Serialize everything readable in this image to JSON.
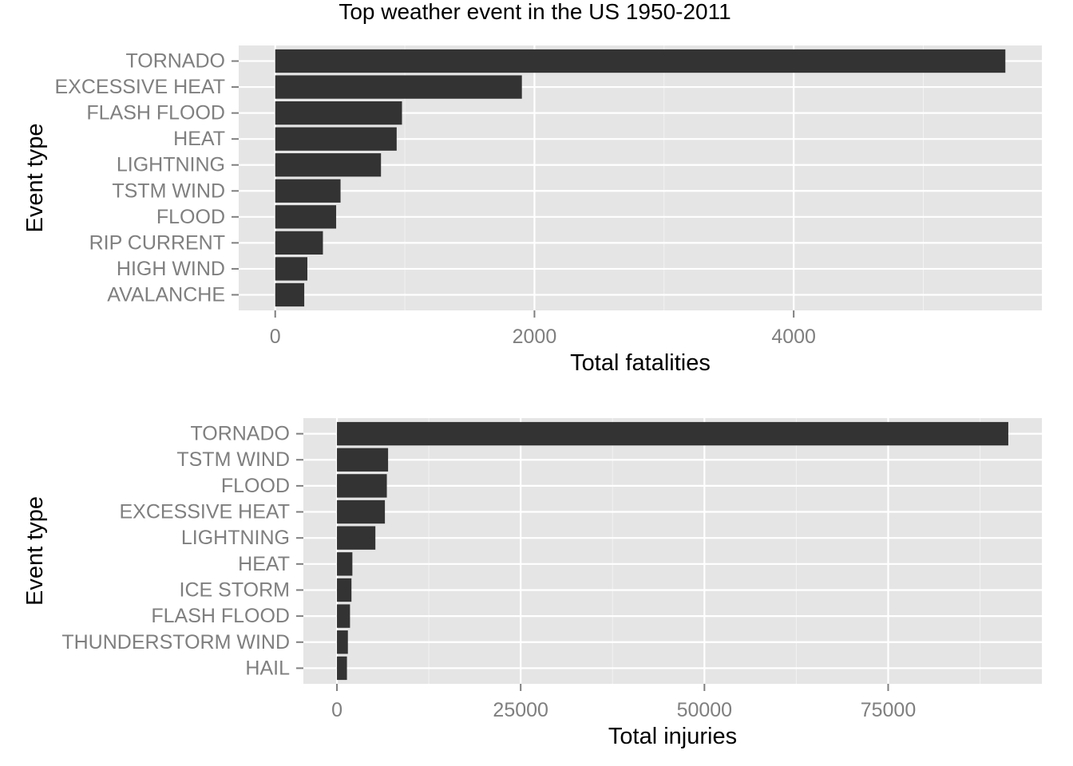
{
  "title": "Top weather event in the US 1950-2011",
  "chart_data": [
    {
      "type": "bar",
      "orientation": "horizontal",
      "categories": [
        "TORNADO",
        "EXCESSIVE HEAT",
        "FLASH FLOOD",
        "HEAT",
        "LIGHTNING",
        "TSTM WIND",
        "FLOOD",
        "RIP CURRENT",
        "HIGH WIND",
        "AVALANCHE"
      ],
      "values": [
        5633,
        1903,
        978,
        937,
        816,
        504,
        470,
        368,
        248,
        224
      ],
      "xlabel": "Total fatalities",
      "ylabel": "Event type",
      "xlim": [
        -281.65,
        5914.65
      ],
      "xticks": [
        0,
        2000,
        4000
      ],
      "xtick_labels": [
        "0",
        "2000",
        "4000"
      ],
      "grid": true,
      "bar_color": "#333333",
      "panel_color": "#e5e5e5"
    },
    {
      "type": "bar",
      "orientation": "horizontal",
      "categories": [
        "TORNADO",
        "TSTM WIND",
        "FLOOD",
        "EXCESSIVE HEAT",
        "LIGHTNING",
        "HEAT",
        "ICE STORM",
        "FLASH FLOOD",
        "THUNDERSTORM WIND",
        "HAIL"
      ],
      "values": [
        91346,
        6957,
        6789,
        6525,
        5230,
        2100,
        1975,
        1777,
        1488,
        1361
      ],
      "xlabel": "Total injuries",
      "ylabel": "Event type",
      "xlim": [
        -4567.3,
        95913.3
      ],
      "xticks": [
        0,
        25000,
        50000,
        75000
      ],
      "xtick_labels": [
        "0",
        "25000",
        "50000",
        "75000"
      ],
      "grid": true,
      "bar_color": "#333333",
      "panel_color": "#e5e5e5"
    }
  ]
}
